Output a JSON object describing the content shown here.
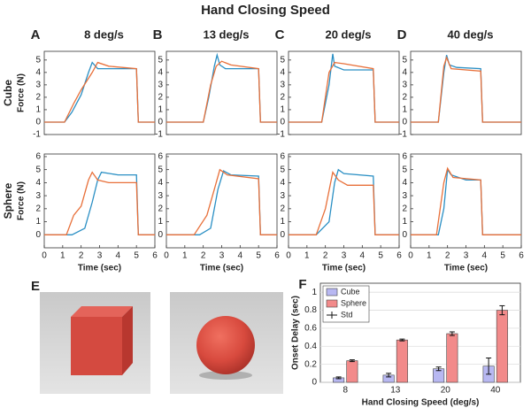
{
  "title": "Hand Closing Speed",
  "photo_panel": {
    "label": "E"
  },
  "chart_data": [
    {
      "type": "line",
      "label": "A",
      "title": "8 deg/s",
      "row_label": "Cube",
      "ylabel": "Force (N)",
      "xlim": [
        0,
        6
      ],
      "ylim": [
        -1,
        5.7
      ],
      "yticks": [
        -1,
        0,
        1,
        2,
        3,
        4,
        5
      ],
      "series": [
        {
          "color": "#2a8fc4",
          "x": [
            0,
            1.1,
            1.5,
            2,
            2.4,
            2.6,
            2.9,
            5,
            5.1,
            6
          ],
          "values": [
            0,
            0,
            0.8,
            2.2,
            4,
            4.8,
            4.3,
            4.3,
            0,
            0
          ]
        },
        {
          "color": "#e8703a",
          "x": [
            0,
            1.1,
            1.6,
            2,
            2.6,
            2.9,
            3.5,
            5,
            5.1,
            6
          ],
          "values": [
            0,
            0,
            1.5,
            2.6,
            4,
            4.8,
            4.5,
            4.3,
            0,
            0
          ]
        }
      ]
    },
    {
      "type": "line",
      "label": "B",
      "title": "13 deg/s",
      "xlim": [
        0,
        6
      ],
      "ylim": [
        -1,
        5.7
      ],
      "yticks": [
        -1,
        0,
        1,
        2,
        3,
        4,
        5
      ],
      "series": [
        {
          "color": "#2a8fc4",
          "x": [
            0,
            2,
            2.3,
            2.6,
            2.75,
            2.9,
            3.2,
            5,
            5.1,
            6
          ],
          "values": [
            0,
            0,
            2,
            4.5,
            5.4,
            4.6,
            4.3,
            4.3,
            0,
            0
          ]
        },
        {
          "color": "#e8703a",
          "x": [
            0,
            2,
            2.4,
            2.7,
            3,
            3.5,
            5,
            5.1,
            6
          ],
          "values": [
            0,
            0,
            3,
            4.5,
            4.9,
            4.6,
            4.3,
            0,
            0
          ]
        }
      ]
    },
    {
      "type": "line",
      "label": "C",
      "title": "20 deg/s",
      "xlim": [
        0,
        6
      ],
      "ylim": [
        -1,
        5.7
      ],
      "yticks": [
        -1,
        0,
        1,
        2,
        3,
        4,
        5
      ],
      "series": [
        {
          "color": "#2a8fc4",
          "x": [
            0,
            1.8,
            2.2,
            2.4,
            2.5,
            3,
            4.6,
            4.7,
            6
          ],
          "values": [
            0,
            0,
            3,
            5.5,
            4.5,
            4.2,
            4.2,
            0,
            0
          ]
        },
        {
          "color": "#e8703a",
          "x": [
            0,
            1.8,
            2.2,
            2.5,
            3,
            4.6,
            4.7,
            6
          ],
          "values": [
            0,
            0,
            4,
            4.8,
            4.7,
            4.3,
            0,
            0
          ]
        }
      ]
    },
    {
      "type": "line",
      "label": "D",
      "title": "40 deg/s",
      "xlim": [
        0,
        6
      ],
      "ylim": [
        -1,
        5.7
      ],
      "yticks": [
        -1,
        0,
        1,
        2,
        3,
        4,
        5
      ],
      "series": [
        {
          "color": "#2a8fc4",
          "x": [
            0,
            1.5,
            1.8,
            1.95,
            2.1,
            2.5,
            3.8,
            3.9,
            6
          ],
          "values": [
            0,
            0,
            4,
            5.4,
            4.6,
            4.4,
            4.3,
            0,
            0
          ]
        },
        {
          "color": "#e8703a",
          "x": [
            0,
            1.5,
            1.8,
            1.95,
            2.2,
            3.8,
            3.9,
            6
          ],
          "values": [
            0,
            0,
            4.5,
            5.2,
            4.3,
            4.1,
            0,
            0
          ]
        }
      ]
    },
    {
      "type": "line",
      "row_label": "Sphere",
      "ylabel": "Force (N)",
      "xlabel": "Time (sec)",
      "xlim": [
        0,
        6
      ],
      "ylim": [
        -1,
        6.2
      ],
      "xticks": [
        0,
        1,
        2,
        3,
        4,
        5,
        6
      ],
      "yticks": [
        0,
        1,
        2,
        3,
        4,
        5,
        6
      ],
      "series": [
        {
          "color": "#2a8fc4",
          "x": [
            0,
            1.5,
            2.2,
            2.6,
            2.9,
            3.1,
            4,
            5,
            5.1,
            6
          ],
          "values": [
            0,
            0,
            0.5,
            2.5,
            4.2,
            4.8,
            4.6,
            4.6,
            0,
            0
          ]
        },
        {
          "color": "#e8703a",
          "x": [
            0,
            1.2,
            1.6,
            2,
            2.4,
            2.6,
            2.9,
            3.5,
            5,
            5.1,
            6
          ],
          "values": [
            0,
            0,
            1.5,
            2.2,
            4.2,
            4.8,
            4.2,
            4,
            4,
            0,
            0
          ]
        }
      ]
    },
    {
      "type": "line",
      "xlabel": "Time (sec)",
      "xlim": [
        0,
        6
      ],
      "ylim": [
        -1,
        6.2
      ],
      "xticks": [
        0,
        1,
        2,
        3,
        4,
        5,
        6
      ],
      "yticks": [
        0,
        1,
        2,
        3,
        4,
        5,
        6
      ],
      "series": [
        {
          "color": "#2a8fc4",
          "x": [
            0,
            1.8,
            2.4,
            2.8,
            3.1,
            3.5,
            5,
            5.1,
            6
          ],
          "values": [
            0,
            0,
            0.5,
            3.5,
            4.9,
            4.6,
            4.5,
            0,
            0
          ]
        },
        {
          "color": "#e8703a",
          "x": [
            0,
            1.5,
            2.2,
            2.6,
            2.9,
            3.3,
            5,
            5.1,
            6
          ],
          "values": [
            0,
            0,
            1.5,
            3.5,
            5,
            4.6,
            4.3,
            0,
            0
          ]
        }
      ]
    },
    {
      "type": "line",
      "xlabel": "Time (sec)",
      "xlim": [
        0,
        6
      ],
      "ylim": [
        -1,
        6.2
      ],
      "xticks": [
        0,
        1,
        2,
        3,
        4,
        5,
        6
      ],
      "yticks": [
        0,
        1,
        2,
        3,
        4,
        5,
        6
      ],
      "series": [
        {
          "color": "#2a8fc4",
          "x": [
            0,
            1.5,
            2.2,
            2.5,
            2.7,
            3,
            4.6,
            4.7,
            6
          ],
          "values": [
            0,
            0,
            1,
            4,
            5,
            4.7,
            4.5,
            0,
            0
          ]
        },
        {
          "color": "#e8703a",
          "x": [
            0,
            1.5,
            2,
            2.4,
            2.7,
            3.2,
            4.6,
            4.7,
            6
          ],
          "values": [
            0,
            0,
            2,
            4.8,
            4.2,
            3.8,
            3.8,
            0,
            0
          ]
        }
      ]
    },
    {
      "type": "line",
      "xlabel": "Time (sec)",
      "xlim": [
        0,
        6
      ],
      "ylim": [
        -1,
        6.2
      ],
      "xticks": [
        0,
        1,
        2,
        3,
        4,
        5,
        6
      ],
      "yticks": [
        0,
        1,
        2,
        3,
        4,
        5,
        6
      ],
      "series": [
        {
          "color": "#2a8fc4",
          "x": [
            0,
            1.5,
            1.8,
            2,
            2.2,
            3,
            3.8,
            3.9,
            6
          ],
          "values": [
            0,
            0,
            2,
            5,
            4.6,
            4.2,
            4.2,
            0,
            0
          ]
        },
        {
          "color": "#e8703a",
          "x": [
            0,
            1.4,
            1.8,
            2,
            2.3,
            3.8,
            3.9,
            6
          ],
          "values": [
            0,
            0,
            4,
            5.1,
            4.4,
            4.2,
            0,
            0
          ]
        }
      ]
    },
    {
      "type": "bar",
      "label": "F",
      "ylabel": "Onset Delay (sec)",
      "xlabel": "Hand Closing Speed (deg/s)",
      "categories": [
        "8",
        "13",
        "20",
        "40"
      ],
      "series": [
        {
          "name": "Cube",
          "color": "#b8b8f2",
          "values": [
            0.05,
            0.08,
            0.15,
            0.18
          ],
          "errors": [
            0.01,
            0.02,
            0.02,
            0.09
          ]
        },
        {
          "name": "Sphere",
          "color": "#f28a8a",
          "values": [
            0.24,
            0.47,
            0.54,
            0.8
          ],
          "errors": [
            0.01,
            0.01,
            0.02,
            0.05
          ]
        }
      ],
      "error_name": "Std",
      "ylim": [
        0,
        1.1
      ],
      "yticks": [
        0,
        0.2,
        0.4,
        0.6,
        0.8,
        1
      ],
      "grid": true,
      "legend": "upper left"
    }
  ]
}
